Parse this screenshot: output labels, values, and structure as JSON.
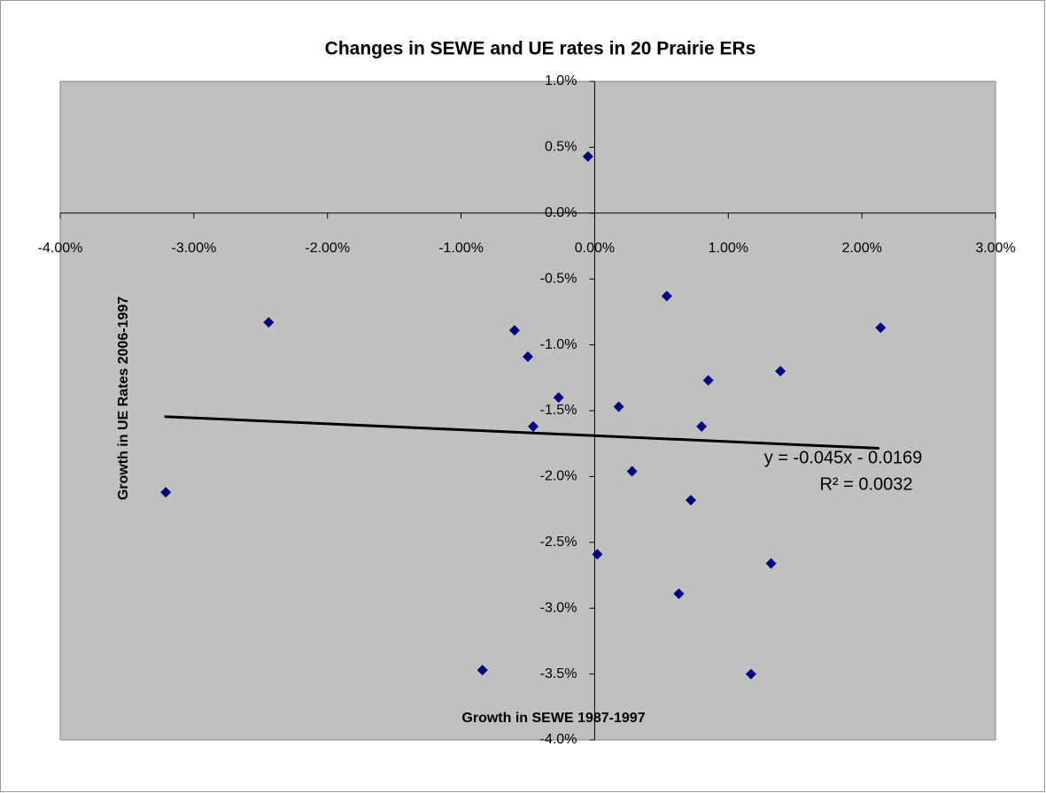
{
  "chart_data": {
    "type": "scatter",
    "title": "Changes in SEWE and UE rates in 20 Prairie ERs",
    "x_label": "Growth in SEWE 1987-1997",
    "y_label": "Growth in UE Rates 2006-1997",
    "color": "#000080",
    "series": [
      {
        "x": [
          -0.05,
          -3.21,
          -2.44,
          -0.6,
          -0.5,
          -0.27,
          -0.46,
          -0.84,
          0.02,
          0.18,
          0.28,
          0.54,
          0.63,
          0.72,
          0.8,
          0.85,
          1.17,
          1.32,
          1.39,
          2.14
        ],
        "values": [
          0.43,
          -2.12,
          -0.83,
          -0.89,
          -1.09,
          -1.4,
          -1.62,
          -3.47,
          -2.59,
          -1.47,
          -1.96,
          -0.63,
          -2.89,
          -2.18,
          -1.62,
          -1.27,
          -3.5,
          -2.66,
          -1.2,
          -0.87
        ]
      }
    ],
    "trendline": {
      "x": [
        -3.22,
        2.13
      ],
      "values": [
        -1.545,
        -1.786
      ],
      "color": "#000000"
    },
    "annotations": [
      "y = -0.045x - 0.0169",
      "R² = 0.0032"
    ],
    "xlim": [
      -4,
      3
    ],
    "xticks": [
      {
        "value": -4,
        "label": "-4.00%"
      },
      {
        "value": -3,
        "label": "-3.00%"
      },
      {
        "value": -2,
        "label": "-2.00%"
      },
      {
        "value": -1,
        "label": "-1.00%"
      },
      {
        "value": 0,
        "label": "0.00%"
      },
      {
        "value": 1,
        "label": "1.00%"
      },
      {
        "value": 2,
        "label": "2.00%"
      },
      {
        "value": 3,
        "label": "3.00%"
      }
    ],
    "ylim": [
      -4,
      1
    ],
    "yticks": [
      {
        "value": 1,
        "label": "1.0%"
      },
      {
        "value": 0.5,
        "label": "0.5%"
      },
      {
        "value": 0,
        "label": "0.0%"
      },
      {
        "value": -0.5,
        "label": "-0.5%"
      },
      {
        "value": -1,
        "label": "-1.0%"
      },
      {
        "value": -1.5,
        "label": "-1.5%"
      },
      {
        "value": -2,
        "label": "-2.0%"
      },
      {
        "value": -2.5,
        "label": "-2.5%"
      },
      {
        "value": -3,
        "label": "-3.0%"
      },
      {
        "value": -3.5,
        "label": "-3.5%"
      },
      {
        "value": -4,
        "label": "-4.0%"
      }
    ],
    "plot_background": "#c0c0c0"
  }
}
